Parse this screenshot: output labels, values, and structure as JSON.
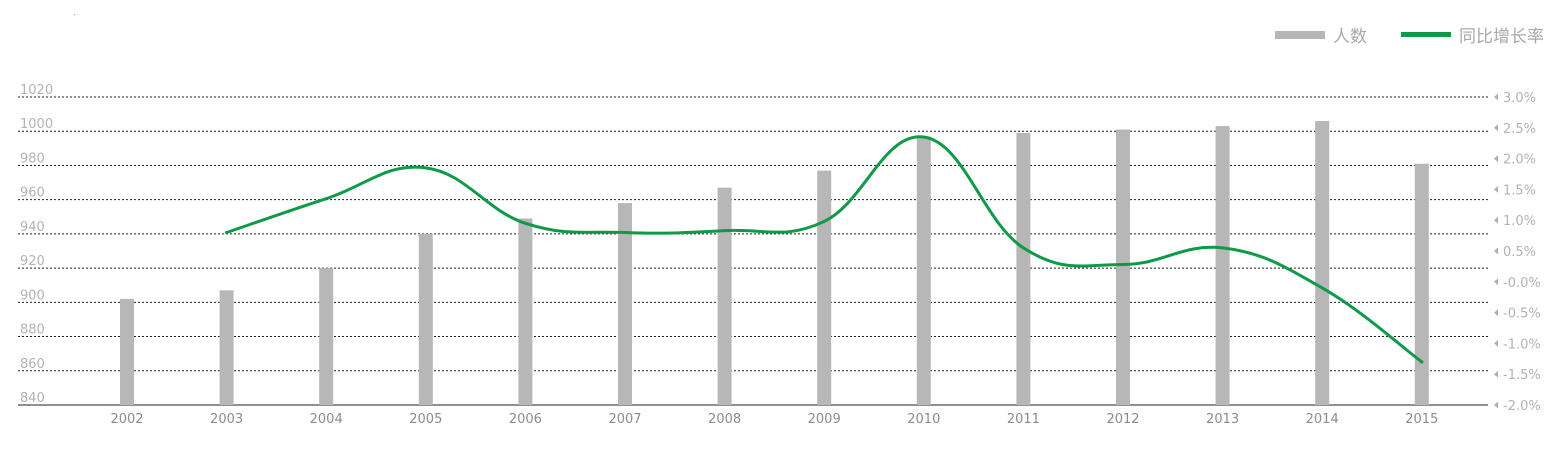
{
  "legend": {
    "bar_label": "人数",
    "line_label": "同比增长率"
  },
  "colors": {
    "bar": "#b7b7b7",
    "line": "#0e9a48",
    "tick_text": "#b3b3b3",
    "axis_text": "#8c8c8c",
    "grid": "#222222"
  },
  "chart_data": {
    "type": "bar",
    "categories": [
      "2002",
      "2003",
      "2004",
      "2005",
      "2006",
      "2007",
      "2008",
      "2009",
      "2010",
      "2011",
      "2012",
      "2013",
      "2014",
      "2015"
    ],
    "series": [
      {
        "name": "人数",
        "type": "bar",
        "axis": "left",
        "values": [
          902,
          907,
          920,
          940,
          949,
          958,
          967,
          977,
          997,
          999,
          1001,
          1003,
          1006,
          981
        ]
      },
      {
        "name": "同比增长率",
        "type": "line",
        "axis": "right",
        "values": [
          null,
          0.8,
          1.35,
          1.85,
          0.95,
          0.8,
          0.83,
          0.98,
          2.35,
          0.55,
          0.28,
          0.55,
          -0.1,
          -1.3
        ],
        "unit": "%"
      }
    ],
    "y_left": {
      "ylim": [
        840,
        1020
      ],
      "ticks": [
        "840",
        "860",
        "880",
        "900",
        "920",
        "940",
        "960",
        "980",
        "1000",
        "1020"
      ]
    },
    "y_right": {
      "ylim": [
        -2.0,
        3.0
      ],
      "ticks": [
        "-2.0%",
        "-1.5%",
        "-1.0%",
        "-0.5%",
        "-0.0%",
        "0.5%",
        "1.0%",
        "1.5%",
        "2.0%",
        "2.5%",
        "3.0%"
      ]
    },
    "grid": true,
    "legend_position": "top-right"
  }
}
